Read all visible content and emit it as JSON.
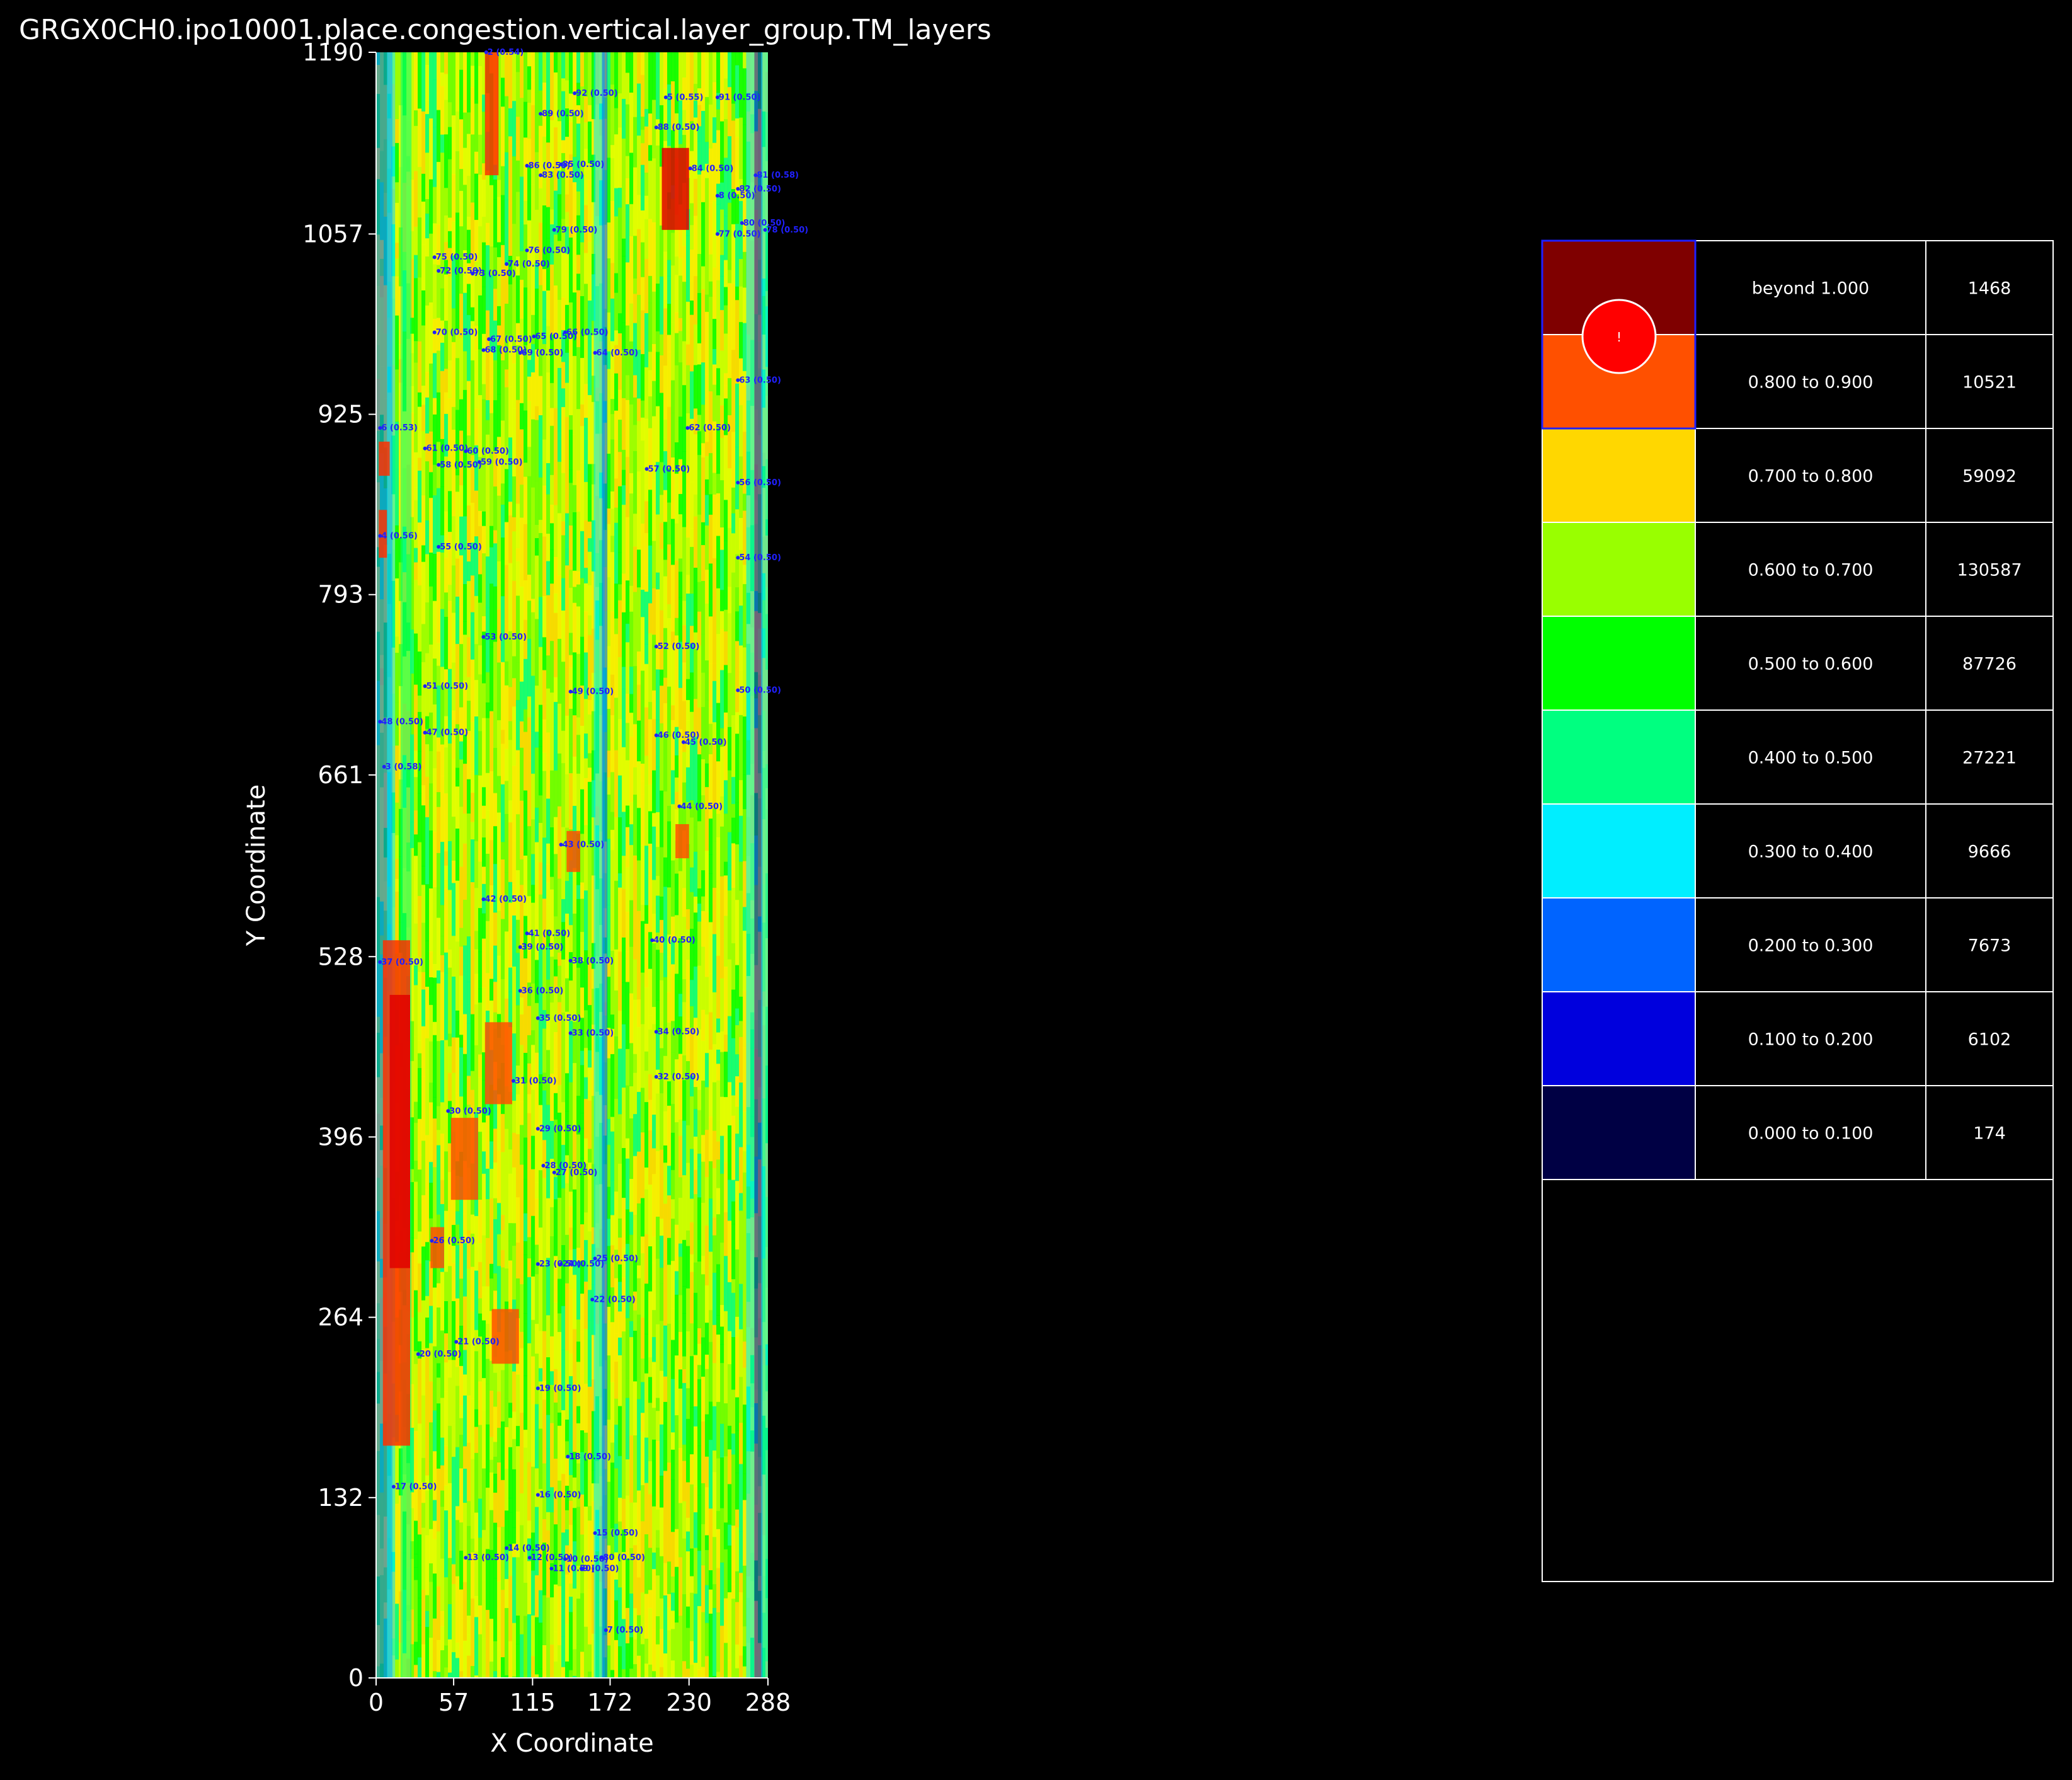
{
  "chart_data": {
    "type": "heatmap",
    "title": "GRGX0CH0.ipo10001.place.congestion.vertical.layer_group.TM_layers",
    "xlabel": "X Coordinate",
    "ylabel": "Y Coordinate",
    "xlim": [
      0,
      288
    ],
    "ylim": [
      0,
      1190
    ],
    "xticks": [
      "0",
      "57",
      "115",
      "172",
      "230",
      "288"
    ],
    "yticks": [
      "0",
      "132",
      "264",
      "396",
      "528",
      "661",
      "793",
      "925",
      "1057",
      "1190"
    ],
    "legend": [
      {
        "color": "#7f0000",
        "range": "beyond 1.000",
        "count": "1468"
      },
      {
        "color": "#ff5000",
        "range": "0.800 to 0.900",
        "count": "10521"
      },
      {
        "color": "#ffd700",
        "range": "0.700 to 0.800",
        "count": "59092"
      },
      {
        "color": "#99ff00",
        "range": "0.600 to 0.700",
        "count": "130587"
      },
      {
        "color": "#00ff00",
        "range": "0.500 to 0.600",
        "count": "87726"
      },
      {
        "color": "#00ff80",
        "range": "0.400 to 0.500",
        "count": "27221"
      },
      {
        "color": "#00eeff",
        "range": "0.300 to 0.400",
        "count": "9666"
      },
      {
        "color": "#0064ff",
        "range": "0.200 to 0.300",
        "count": "7673"
      },
      {
        "color": "#0000dd",
        "range": "0.100 to 0.200",
        "count": "6102"
      },
      {
        "color": "#000044",
        "range": "0.000 to 0.100",
        "count": "174"
      }
    ],
    "marker_label": "!",
    "hotspot_labels": [
      {
        "label": "92 (0.50)",
        "x": 145,
        "y": 1160
      },
      {
        "label": "5 (0.55)",
        "x": 212,
        "y": 1157
      },
      {
        "label": "91 (0.50)",
        "x": 250,
        "y": 1157
      },
      {
        "label": "89 (0.50)",
        "x": 120,
        "y": 1145
      },
      {
        "label": "88 (0.50)",
        "x": 205,
        "y": 1135
      },
      {
        "label": "86 (0.50)",
        "x": 110,
        "y": 1107
      },
      {
        "label": "85 (0.50)",
        "x": 135,
        "y": 1108
      },
      {
        "label": "83 (0.50)",
        "x": 120,
        "y": 1100
      },
      {
        "label": "84 (0.50)",
        "x": 230,
        "y": 1105
      },
      {
        "label": "81 (0.58)",
        "x": 278,
        "y": 1100
      },
      {
        "label": "82 (0.50)",
        "x": 265,
        "y": 1090
      },
      {
        "label": "8 (0.50)",
        "x": 250,
        "y": 1085
      },
      {
        "label": "80 (0.50)",
        "x": 268,
        "y": 1065
      },
      {
        "label": "79 (0.50)",
        "x": 130,
        "y": 1060
      },
      {
        "label": "77 (0.50)",
        "x": 250,
        "y": 1057
      },
      {
        "label": "78 (0.50)",
        "x": 285,
        "y": 1060
      },
      {
        "label": "75 (0.50)",
        "x": 42,
        "y": 1040
      },
      {
        "label": "76 (0.50)",
        "x": 110,
        "y": 1045
      },
      {
        "label": "74 (0.50)",
        "x": 95,
        "y": 1035
      },
      {
        "label": "72 (0.50)",
        "x": 45,
        "y": 1030
      },
      {
        "label": "73 (0.50)",
        "x": 70,
        "y": 1028
      },
      {
        "label": "70 (0.50)",
        "x": 42,
        "y": 985
      },
      {
        "label": "67 (0.50)",
        "x": 82,
        "y": 980
      },
      {
        "label": "65 (0.50)",
        "x": 115,
        "y": 982
      },
      {
        "label": "66 (0.50)",
        "x": 138,
        "y": 985
      },
      {
        "label": "68 (0.50)",
        "x": 78,
        "y": 972
      },
      {
        "label": "69 (0.50)",
        "x": 105,
        "y": 970
      },
      {
        "label": "64 (0.50)",
        "x": 160,
        "y": 970
      },
      {
        "label": "63 (0.50)",
        "x": 265,
        "y": 950
      },
      {
        "label": "6 (0.53)",
        "x": 2,
        "y": 915
      },
      {
        "label": "62 (0.50)",
        "x": 228,
        "y": 915
      },
      {
        "label": "61 (0.50)",
        "x": 35,
        "y": 900
      },
      {
        "label": "60 (0.50)",
        "x": 65,
        "y": 898
      },
      {
        "label": "58 (0.50)",
        "x": 45,
        "y": 888
      },
      {
        "label": "59 (0.50)",
        "x": 75,
        "y": 890
      },
      {
        "label": "57 (0.50)",
        "x": 198,
        "y": 885
      },
      {
        "label": "56 (0.50)",
        "x": 265,
        "y": 875
      },
      {
        "label": "4 (0.56)",
        "x": 2,
        "y": 836
      },
      {
        "label": "55 (0.50)",
        "x": 45,
        "y": 828
      },
      {
        "label": "54 (0.50)",
        "x": 265,
        "y": 820
      },
      {
        "label": "53 (0.50)",
        "x": 78,
        "y": 762
      },
      {
        "label": "52 (0.50)",
        "x": 205,
        "y": 755
      },
      {
        "label": "51 (0.50)",
        "x": 35,
        "y": 726
      },
      {
        "label": "49 (0.50)",
        "x": 142,
        "y": 722
      },
      {
        "label": "50 (0.50)",
        "x": 265,
        "y": 723
      },
      {
        "label": "48 (0.50)",
        "x": 2,
        "y": 700
      },
      {
        "label": "47 (0.50)",
        "x": 35,
        "y": 692
      },
      {
        "label": "46 (0.50)",
        "x": 205,
        "y": 690
      },
      {
        "label": "45 (0.50)",
        "x": 225,
        "y": 685
      },
      {
        "label": "3 (0.58)",
        "x": 5,
        "y": 667
      },
      {
        "label": "44 (0.50)",
        "x": 222,
        "y": 638
      },
      {
        "label": "43 (0.50)",
        "x": 135,
        "y": 610
      },
      {
        "label": "42 (0.50)",
        "x": 78,
        "y": 570
      },
      {
        "label": "41 (0.50)",
        "x": 110,
        "y": 545
      },
      {
        "label": "40 (0.50)",
        "x": 202,
        "y": 540
      },
      {
        "label": "39 (0.50)",
        "x": 105,
        "y": 535
      },
      {
        "label": "37 (0.50)",
        "x": 2,
        "y": 524
      },
      {
        "label": "38 (0.50)",
        "x": 142,
        "y": 525
      },
      {
        "label": "36 (0.50)",
        "x": 105,
        "y": 503
      },
      {
        "label": "35 (0.50)",
        "x": 118,
        "y": 483
      },
      {
        "label": "33 (0.50)",
        "x": 142,
        "y": 472
      },
      {
        "label": "34 (0.50)",
        "x": 205,
        "y": 473
      },
      {
        "label": "32 (0.50)",
        "x": 205,
        "y": 440
      },
      {
        "label": "31 (0.50)",
        "x": 100,
        "y": 437
      },
      {
        "label": "30 (0.50)",
        "x": 52,
        "y": 415
      },
      {
        "label": "29 (0.50)",
        "x": 118,
        "y": 402
      },
      {
        "label": "28 (0.50)",
        "x": 122,
        "y": 375
      },
      {
        "label": "27 (0.50)",
        "x": 130,
        "y": 370
      },
      {
        "label": "26 (0.50)",
        "x": 40,
        "y": 320
      },
      {
        "label": "23 (0.50)",
        "x": 118,
        "y": 303
      },
      {
        "label": "24 (0.50)",
        "x": 135,
        "y": 303
      },
      {
        "label": "25 (0.50)",
        "x": 160,
        "y": 307
      },
      {
        "label": "22 (0.50)",
        "x": 158,
        "y": 277
      },
      {
        "label": "21 (0.50)",
        "x": 58,
        "y": 246
      },
      {
        "label": "20 (0.50)",
        "x": 30,
        "y": 237
      },
      {
        "label": "19 (0.50)",
        "x": 118,
        "y": 212
      },
      {
        "label": "18 (0.50)",
        "x": 140,
        "y": 162
      },
      {
        "label": "17 (0.50)",
        "x": 12,
        "y": 140
      },
      {
        "label": "16 (0.50)",
        "x": 118,
        "y": 134
      },
      {
        "label": "15 (0.50)",
        "x": 160,
        "y": 106
      },
      {
        "label": "14 (0.50)",
        "x": 95,
        "y": 95
      },
      {
        "label": "13 (0.50)",
        "x": 65,
        "y": 88
      },
      {
        "label": "12 (0.50)",
        "x": 112,
        "y": 88
      },
      {
        "label": "10 (0.50)",
        "x": 138,
        "y": 87
      },
      {
        "label": "11 (0.50)",
        "x": 128,
        "y": 80
      },
      {
        "label": "9 (0.50)",
        "x": 150,
        "y": 80
      },
      {
        "label": "80 (0.50)",
        "x": 165,
        "y": 88
      },
      {
        "label": "7 (0.50)",
        "x": 168,
        "y": 35
      },
      {
        "label": "2 (0.54)",
        "x": 80,
        "y": 1190
      }
    ]
  }
}
